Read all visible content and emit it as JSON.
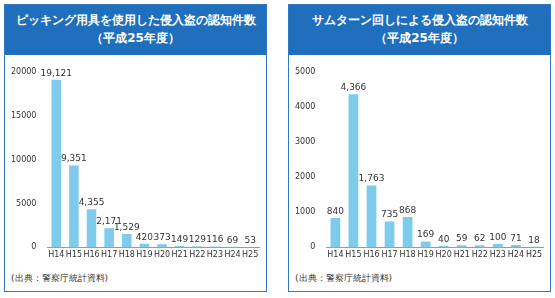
{
  "chart_data": [
    {
      "type": "bar",
      "title": "ピッキング用具を使用した侵入盗の認知件数",
      "subtitle": "（平成25年度）",
      "categories": [
        "H14",
        "H15",
        "H16",
        "H17",
        "H18",
        "H19",
        "H20",
        "H21",
        "H22",
        "H23",
        "H24",
        "H25"
      ],
      "values": [
        19121,
        9351,
        4355,
        2171,
        1529,
        420,
        373,
        149,
        129,
        116,
        69,
        53
      ],
      "value_labels": [
        "19,121",
        "9,351",
        "4,355",
        "2,171",
        "1,529",
        "420",
        "373",
        "149",
        "129",
        "116",
        "69",
        "53"
      ],
      "color": "#7fcbec",
      "ylim": [
        0,
        20000
      ],
      "yticks": [
        0,
        5000,
        10000,
        15000,
        20000
      ],
      "grid": false,
      "data_labels": true,
      "source": "(出典：警察庁統計資料)"
    },
    {
      "type": "bar",
      "title": "サムターン回しによる侵入盗の認知件数",
      "subtitle": "（平成25年度）",
      "categories": [
        "H14",
        "H15",
        "H16",
        "H17",
        "H18",
        "H19",
        "H20",
        "H21",
        "H22",
        "H23",
        "H24",
        "H25"
      ],
      "values": [
        840,
        4366,
        1763,
        735,
        868,
        169,
        40,
        59,
        62,
        100,
        71,
        18
      ],
      "value_labels": [
        "840",
        "4,366",
        "1,763",
        "735",
        "868",
        "169",
        "40",
        "59",
        "62",
        "100",
        "71",
        "18"
      ],
      "color": "#7fcbec",
      "ylim": [
        0,
        5000
      ],
      "yticks": [
        0,
        1000,
        2000,
        3000,
        4000,
        5000
      ],
      "grid": false,
      "data_labels": true,
      "source": "(出典：警察庁統計資料)"
    }
  ]
}
